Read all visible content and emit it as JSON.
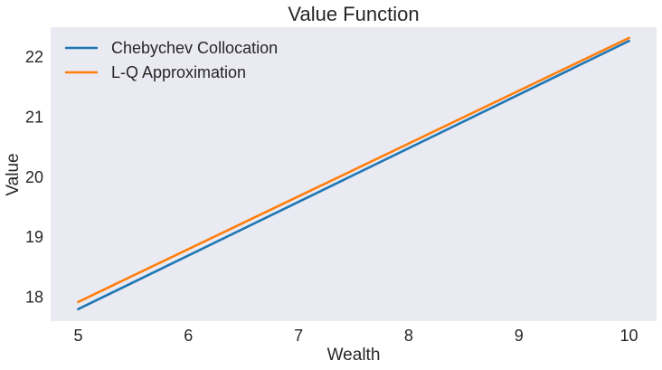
{
  "chart_data": {
    "type": "line",
    "title": "Value Function",
    "xlabel": "Wealth",
    "ylabel": "Value",
    "xlim": [
      4.75,
      10.25
    ],
    "ylim": [
      17.6,
      22.5
    ],
    "xticks": [
      5,
      6,
      7,
      8,
      9,
      10
    ],
    "yticks": [
      18,
      19,
      20,
      21,
      22
    ],
    "grid": false,
    "legend_position": "top-left",
    "background": "#eaeaf2",
    "series": [
      {
        "name": "Chebychev Collocation",
        "color": "#1f77b4",
        "x": [
          5,
          10
        ],
        "y": [
          17.8,
          22.27
        ]
      },
      {
        "name": "L-Q Approximation",
        "color": "#ff7f0e",
        "x": [
          5,
          10
        ],
        "y": [
          17.92,
          22.32
        ]
      }
    ]
  }
}
